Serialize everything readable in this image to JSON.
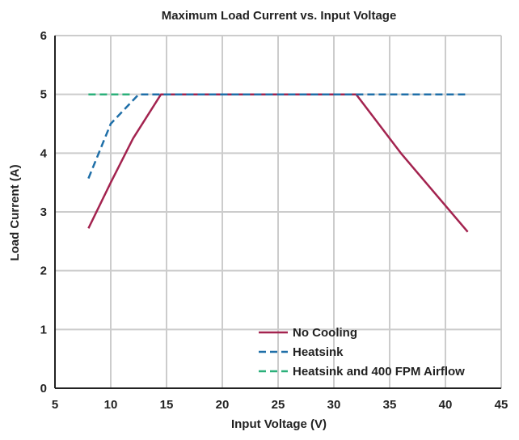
{
  "chart_data": {
    "type": "line",
    "title": "Maximum Load Current vs. Input Voltage",
    "xlabel": "Input Voltage (V)",
    "ylabel": "Load Current (A)",
    "xlim": [
      5,
      45
    ],
    "ylim": [
      0,
      6
    ],
    "xticks": [
      5,
      10,
      15,
      20,
      25,
      30,
      35,
      40,
      45
    ],
    "yticks": [
      0,
      1,
      2,
      3,
      4,
      5,
      6
    ],
    "xtick_labels": [
      "5",
      "10",
      "15",
      "20",
      "25",
      "30",
      "35",
      "40",
      "45"
    ],
    "ytick_labels": [
      "0",
      "1",
      "2",
      "3",
      "4",
      "5",
      "6"
    ],
    "grid": true,
    "legend_position": "bottom-right",
    "series": [
      {
        "name": "No Cooling",
        "color": "#a3234f",
        "style": "solid",
        "x": [
          8,
          10,
          12,
          14.5,
          32,
          36,
          42
        ],
        "y": [
          2.72,
          3.5,
          4.25,
          5.0,
          5.0,
          4.0,
          2.66
        ]
      },
      {
        "name": "Heatsink",
        "color": "#1f6fa8",
        "style": "dashed",
        "x": [
          8,
          10,
          12.5,
          42
        ],
        "y": [
          3.57,
          4.5,
          5.0,
          5.0
        ]
      },
      {
        "name": "Heatsink and 400 FPM Airflow",
        "color": "#2bb07a",
        "style": "dashed",
        "x": [
          8,
          12
        ],
        "y": [
          5.0,
          5.0
        ]
      }
    ]
  }
}
